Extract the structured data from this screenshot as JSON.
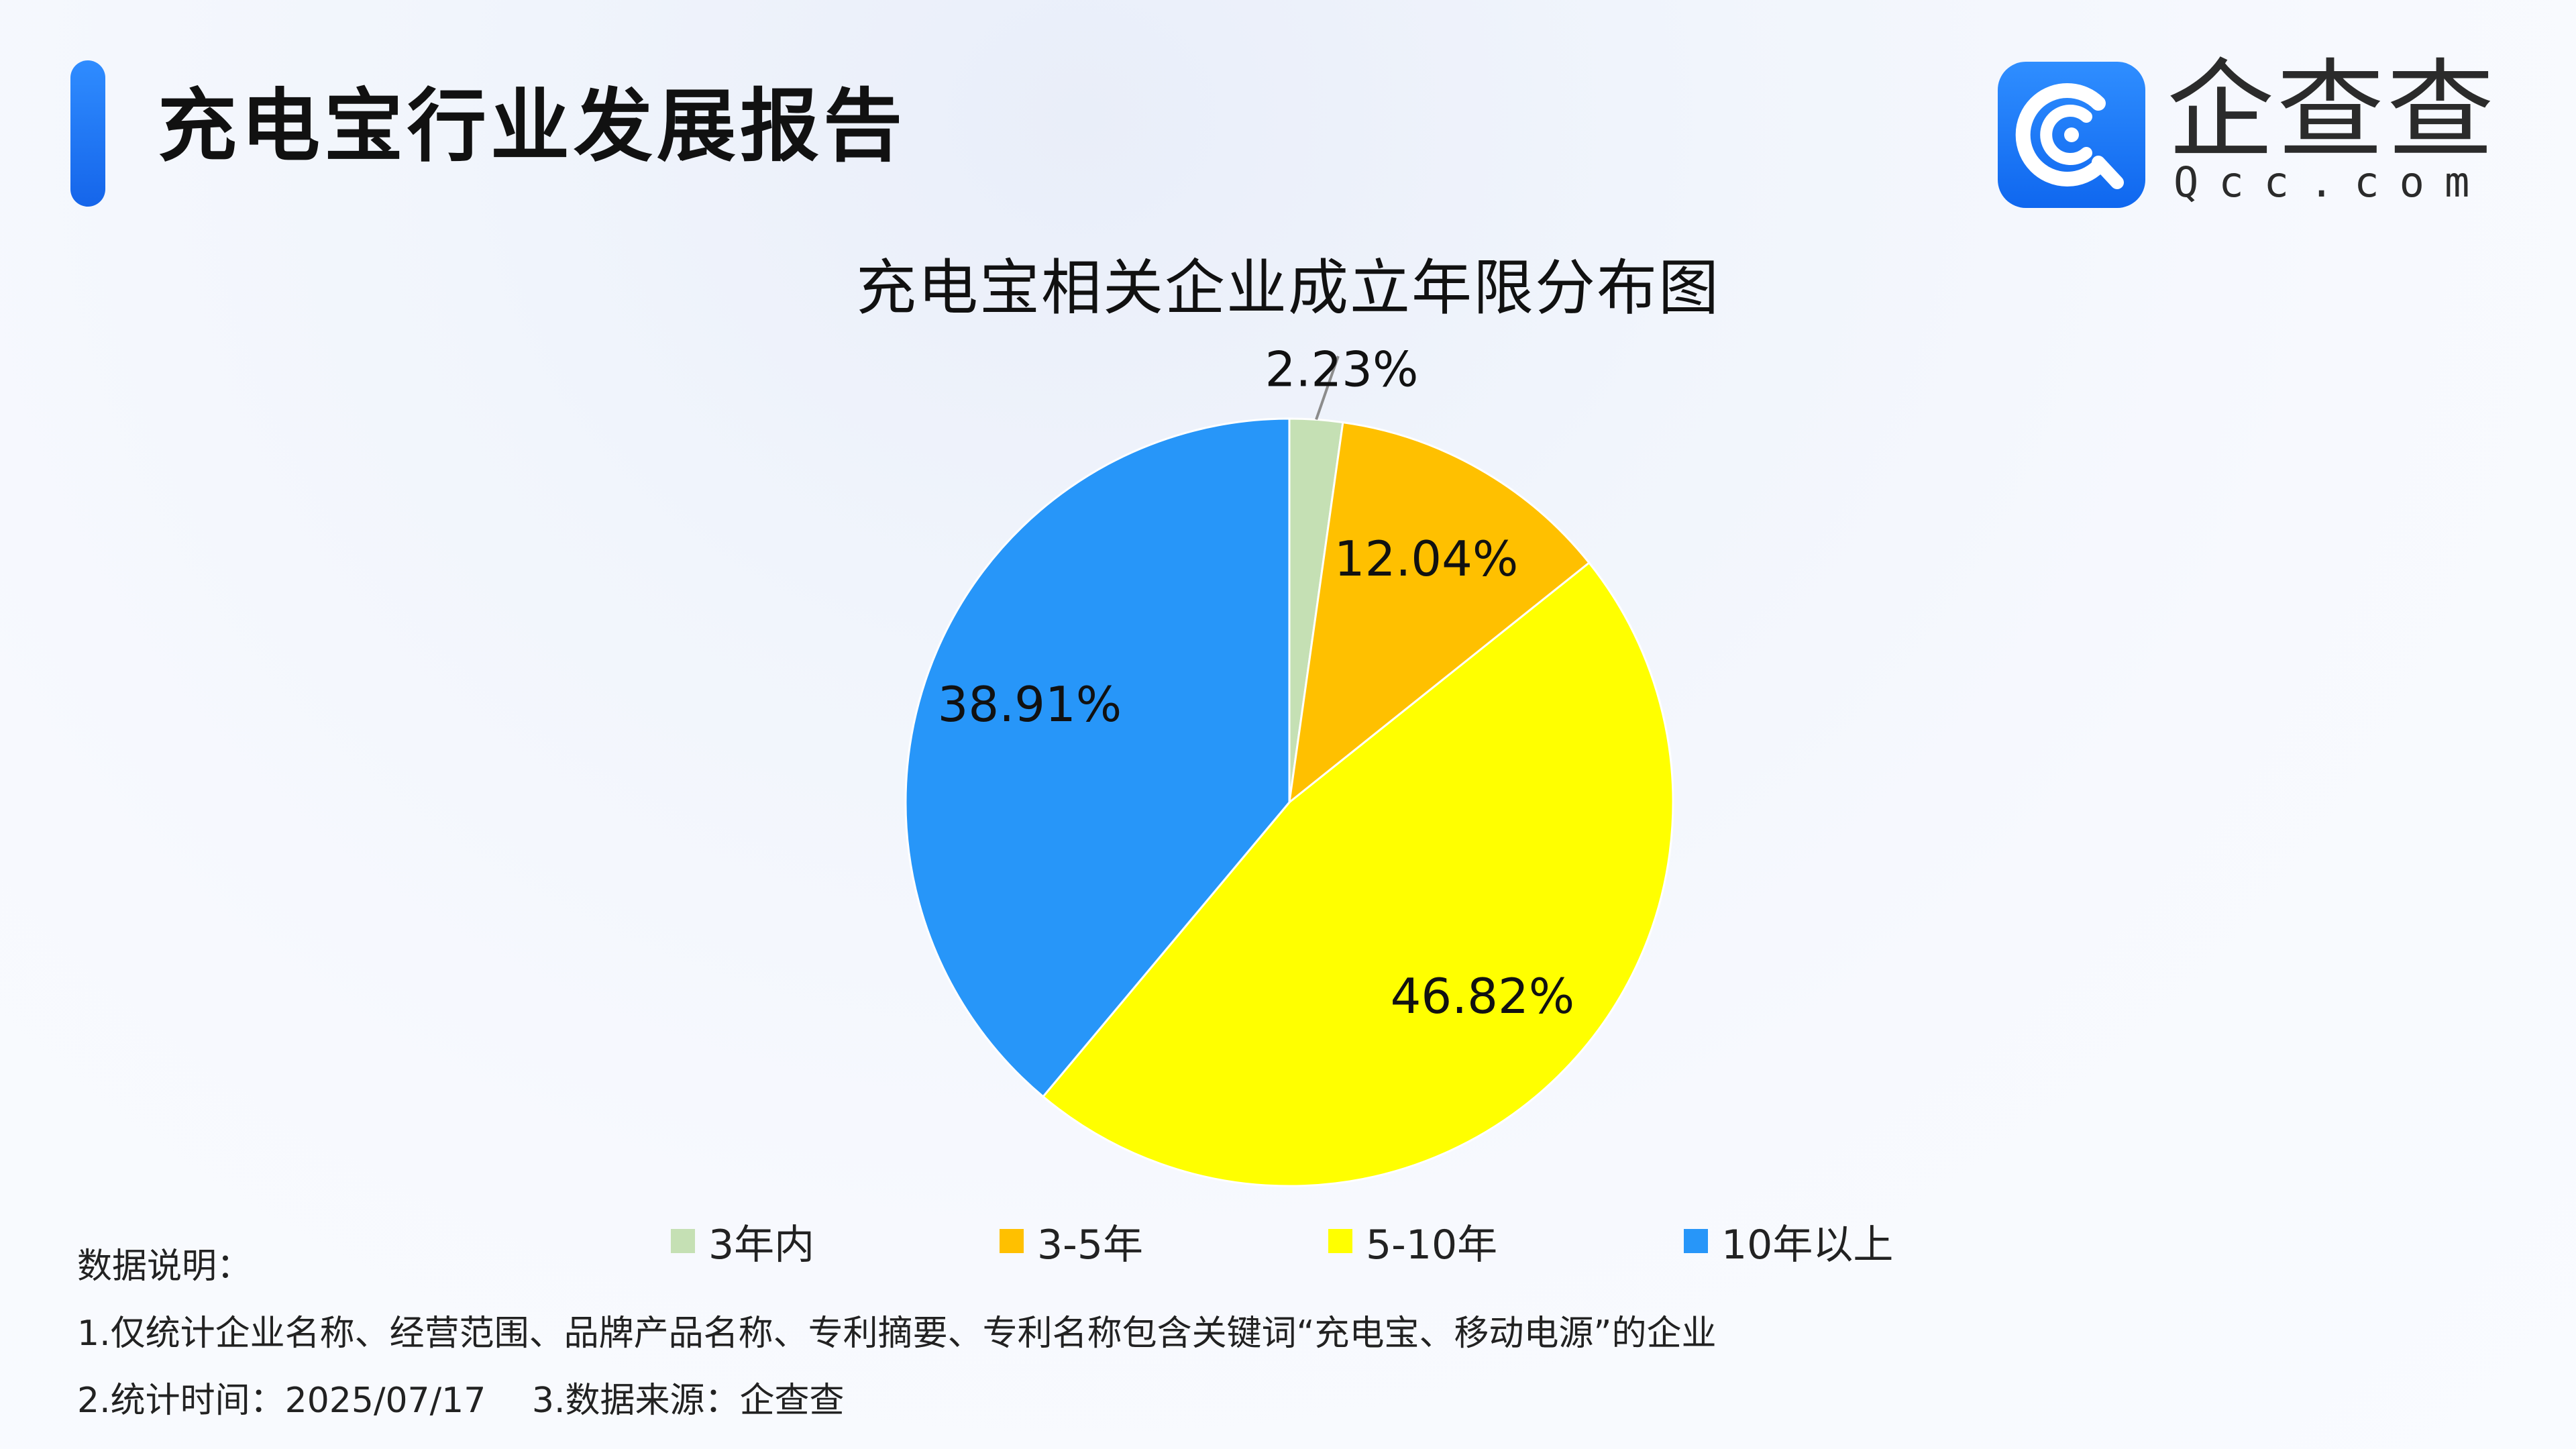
{
  "header": {
    "title": "充电宝行业发展报告"
  },
  "logo": {
    "name": "企查查",
    "domain": "Qcc.com",
    "icon": "qcc-logo-icon",
    "color": "#1f7dff"
  },
  "chart_data": {
    "type": "pie",
    "title": "充电宝相关企业成立年限分布图",
    "categories": [
      "3年内",
      "3-5年",
      "5-10年",
      "10年以上"
    ],
    "values": [
      2.23,
      12.04,
      46.82,
      38.91
    ],
    "data_labels": [
      "2.23%",
      "12.04%",
      "46.82%",
      "38.91%"
    ],
    "colors": [
      "#c5e0b4",
      "#ffc000",
      "#ffff00",
      "#2796f9"
    ],
    "legend_position": "bottom",
    "start_angle": "12 o'clock",
    "direction": "clockwise"
  },
  "notes": {
    "heading": "数据说明：",
    "line1": "1.仅统计企业名称、经营范围、品牌产品名称、专利摘要、专利名称包含关键词“充电宝、移动电源”的企业",
    "line2": "2.统计时间：2025/07/17　 3.数据来源：企查查"
  }
}
